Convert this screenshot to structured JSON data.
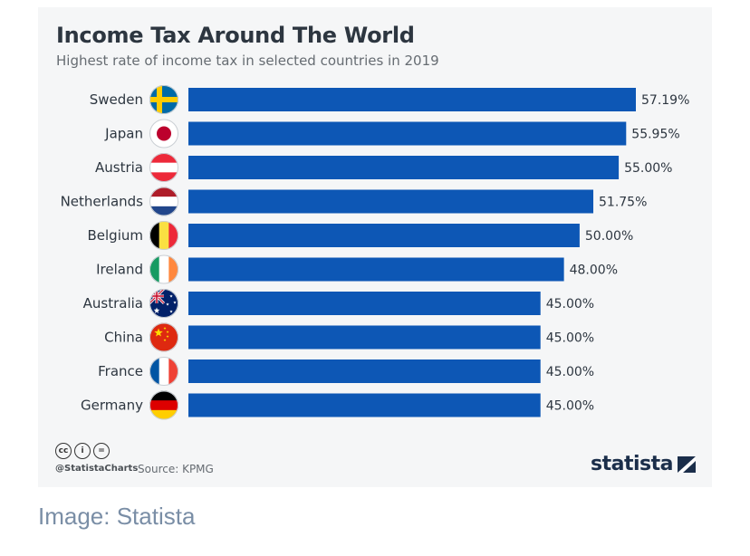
{
  "chart_data": {
    "type": "bar",
    "orientation": "horizontal",
    "title": "Income Tax Around The World",
    "subtitle": "Highest rate of income tax in selected countries in 2019",
    "categories": [
      "Sweden",
      "Japan",
      "Austria",
      "Netherlands",
      "Belgium",
      "Ireland",
      "Australia",
      "China",
      "France",
      "Germany"
    ],
    "values": [
      57.19,
      55.95,
      55.0,
      51.75,
      50.0,
      48.0,
      45.0,
      45.0,
      45.0,
      45.0
    ],
    "value_labels": [
      "57.19%",
      "55.95%",
      "55.00%",
      "51.75%",
      "50.00%",
      "48.00%",
      "45.00%",
      "45.00%",
      "45.00%",
      "45.00%"
    ],
    "xlim": [
      0,
      57.19
    ],
    "grid": false,
    "bar_color": "#0d57b5"
  },
  "footer": {
    "license_icons": [
      "cc",
      "by",
      "nd"
    ],
    "license_glyphs": [
      "cc",
      "i",
      "="
    ],
    "handle": "@StatistaCharts",
    "source": "Source: KPMG",
    "brand": "statista",
    "brand_icon": "statista-logo-icon"
  },
  "caption": "Image: Statista",
  "flags": [
    "sweden",
    "japan",
    "austria",
    "netherlands",
    "belgium",
    "ireland",
    "australia",
    "china",
    "france",
    "germany"
  ]
}
